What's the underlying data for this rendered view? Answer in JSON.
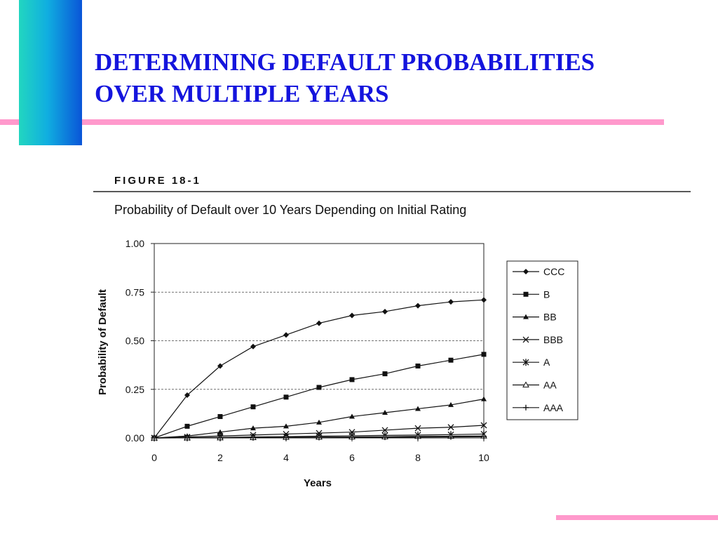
{
  "slide": {
    "title_line1": "DETERMINING DEFAULT PROBABILITIES",
    "title_line2": "OVER MULTIPLE YEARS",
    "accent_color": "#1414dd",
    "rule_color": "#ff99cc"
  },
  "figure": {
    "label": "FIGURE 18-1",
    "caption": "Probability of Default over 10 Years Depending on Initial Rating"
  },
  "chart_data": {
    "type": "line",
    "title": "Probability of Default over 10 Years Depending on Initial Rating",
    "xlabel": "Years",
    "ylabel": "Probability of Default",
    "xlim": [
      0,
      10
    ],
    "ylim": [
      0,
      1
    ],
    "x_ticks": [
      "0",
      "2",
      "4",
      "6",
      "8",
      "10"
    ],
    "y_ticks": [
      "0.00",
      "0.25",
      "0.50",
      "0.75",
      "1.00"
    ],
    "grid": "horizontal dashed",
    "legend_position": "right",
    "x": [
      0,
      1,
      2,
      3,
      4,
      5,
      6,
      7,
      8,
      9,
      10
    ],
    "series": [
      {
        "name": "CCC",
        "marker": "diamond",
        "values": [
          0,
          0.22,
          0.37,
          0.47,
          0.53,
          0.59,
          0.63,
          0.65,
          0.68,
          0.7,
          0.71
        ]
      },
      {
        "name": "B",
        "marker": "square",
        "values": [
          0,
          0.06,
          0.11,
          0.16,
          0.21,
          0.26,
          0.3,
          0.33,
          0.37,
          0.4,
          0.43
        ]
      },
      {
        "name": "BB",
        "marker": "triangle",
        "values": [
          0,
          0.01,
          0.03,
          0.05,
          0.06,
          0.08,
          0.11,
          0.13,
          0.15,
          0.17,
          0.2
        ]
      },
      {
        "name": "BBB",
        "marker": "x",
        "values": [
          0,
          0.005,
          0.01,
          0.015,
          0.02,
          0.025,
          0.03,
          0.04,
          0.05,
          0.055,
          0.065
        ]
      },
      {
        "name": "A",
        "marker": "asterisk",
        "values": [
          0,
          0.001,
          0.003,
          0.005,
          0.007,
          0.009,
          0.011,
          0.013,
          0.015,
          0.017,
          0.02
        ]
      },
      {
        "name": "AA",
        "marker": "open-triangle",
        "values": [
          0,
          0.0005,
          0.001,
          0.002,
          0.003,
          0.004,
          0.005,
          0.006,
          0.008,
          0.009,
          0.01
        ]
      },
      {
        "name": "AAA",
        "marker": "plus",
        "values": [
          0,
          0.0002,
          0.0005,
          0.001,
          0.0015,
          0.002,
          0.003,
          0.003,
          0.004,
          0.005,
          0.006
        ]
      }
    ]
  }
}
